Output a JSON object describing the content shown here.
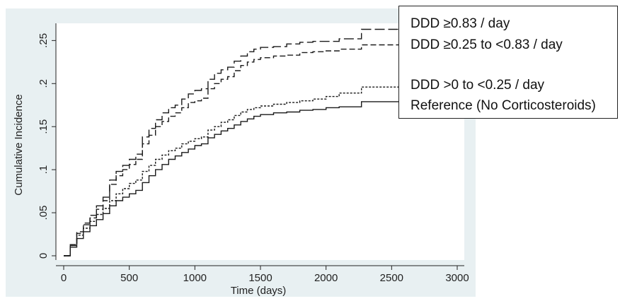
{
  "chart_data": {
    "type": "line",
    "xlabel": "Time (days)",
    "ylabel": "Cumulative Incidence",
    "xlim": [
      0,
      3000
    ],
    "ylim": [
      0,
      0.27
    ],
    "x_ticks": [
      0,
      500,
      1000,
      1500,
      2000,
      2500,
      3000
    ],
    "y_ticks": [
      0,
      0.05,
      0.1,
      0.15,
      0.2,
      0.25
    ],
    "x_tick_labels": [
      "0",
      "500",
      "1000",
      "1500",
      "2000",
      "2500",
      "3000"
    ],
    "y_tick_labels": [
      "0",
      ".05",
      ".1",
      ".15",
      ".2",
      ".25"
    ],
    "legend_position": "top-right",
    "legend": [
      "DDD ≥0.83 / day",
      "DDD ≥0.25 to <0.83 / day",
      "DDD >0 to <0.25 / day",
      "Reference (No Corticosteroids)"
    ],
    "series": [
      {
        "name": "DDD ≥0.83 / day",
        "dash": "long-dash",
        "points": [
          [
            0,
            0
          ],
          [
            50,
            0.013
          ],
          [
            100,
            0.028
          ],
          [
            150,
            0.038
          ],
          [
            200,
            0.047
          ],
          [
            250,
            0.058
          ],
          [
            300,
            0.068
          ],
          [
            350,
            0.088
          ],
          [
            400,
            0.098
          ],
          [
            450,
            0.105
          ],
          [
            500,
            0.112
          ],
          [
            550,
            0.118
          ],
          [
            600,
            0.138
          ],
          [
            650,
            0.148
          ],
          [
            700,
            0.158
          ],
          [
            750,
            0.166
          ],
          [
            800,
            0.172
          ],
          [
            850,
            0.175
          ],
          [
            900,
            0.182
          ],
          [
            950,
            0.188
          ],
          [
            1000,
            0.192
          ],
          [
            1050,
            0.194
          ],
          [
            1100,
            0.205
          ],
          [
            1150,
            0.212
          ],
          [
            1200,
            0.216
          ],
          [
            1250,
            0.219
          ],
          [
            1300,
            0.226
          ],
          [
            1350,
            0.232
          ],
          [
            1400,
            0.237
          ],
          [
            1450,
            0.24
          ],
          [
            1500,
            0.242
          ],
          [
            1600,
            0.243
          ],
          [
            1700,
            0.246
          ],
          [
            1800,
            0.248
          ],
          [
            1900,
            0.249
          ],
          [
            2000,
            0.249
          ],
          [
            2100,
            0.252
          ],
          [
            2250,
            0.252
          ],
          [
            2270,
            0.263
          ],
          [
            2600,
            0.263
          ]
        ]
      },
      {
        "name": "DDD ≥0.25 to <0.83 / day",
        "dash": "medium-dash",
        "points": [
          [
            0,
            0
          ],
          [
            50,
            0.012
          ],
          [
            100,
            0.026
          ],
          [
            150,
            0.036
          ],
          [
            200,
            0.044
          ],
          [
            250,
            0.054
          ],
          [
            300,
            0.064
          ],
          [
            350,
            0.083
          ],
          [
            400,
            0.093
          ],
          [
            450,
            0.1
          ],
          [
            500,
            0.106
          ],
          [
            550,
            0.112
          ],
          [
            600,
            0.13
          ],
          [
            650,
            0.14
          ],
          [
            700,
            0.15
          ],
          [
            750,
            0.156
          ],
          [
            800,
            0.162
          ],
          [
            850,
            0.166
          ],
          [
            900,
            0.172
          ],
          [
            950,
            0.178
          ],
          [
            1000,
            0.18
          ],
          [
            1050,
            0.183
          ],
          [
            1100,
            0.194
          ],
          [
            1150,
            0.2
          ],
          [
            1200,
            0.205
          ],
          [
            1250,
            0.208
          ],
          [
            1300,
            0.215
          ],
          [
            1350,
            0.221
          ],
          [
            1400,
            0.225
          ],
          [
            1450,
            0.228
          ],
          [
            1500,
            0.23
          ],
          [
            1600,
            0.232
          ],
          [
            1700,
            0.233
          ],
          [
            1800,
            0.236
          ],
          [
            1900,
            0.237
          ],
          [
            2000,
            0.238
          ],
          [
            2100,
            0.24
          ],
          [
            2250,
            0.24
          ],
          [
            2270,
            0.245
          ],
          [
            2600,
            0.245
          ]
        ]
      },
      {
        "name": "DDD >0 to <0.25 / day",
        "dash": "short-dash",
        "points": [
          [
            0,
            0
          ],
          [
            50,
            0.012
          ],
          [
            100,
            0.024
          ],
          [
            150,
            0.032
          ],
          [
            200,
            0.04
          ],
          [
            250,
            0.048
          ],
          [
            300,
            0.055
          ],
          [
            350,
            0.064
          ],
          [
            400,
            0.072
          ],
          [
            450,
            0.078
          ],
          [
            500,
            0.084
          ],
          [
            550,
            0.088
          ],
          [
            600,
            0.098
          ],
          [
            650,
            0.105
          ],
          [
            700,
            0.112
          ],
          [
            750,
            0.117
          ],
          [
            800,
            0.122
          ],
          [
            850,
            0.125
          ],
          [
            900,
            0.13
          ],
          [
            950,
            0.133
          ],
          [
            1000,
            0.136
          ],
          [
            1050,
            0.138
          ],
          [
            1100,
            0.146
          ],
          [
            1150,
            0.15
          ],
          [
            1200,
            0.155
          ],
          [
            1250,
            0.158
          ],
          [
            1300,
            0.163
          ],
          [
            1350,
            0.167
          ],
          [
            1400,
            0.17
          ],
          [
            1450,
            0.172
          ],
          [
            1500,
            0.174
          ],
          [
            1600,
            0.176
          ],
          [
            1700,
            0.178
          ],
          [
            1800,
            0.18
          ],
          [
            1900,
            0.182
          ],
          [
            2000,
            0.185
          ],
          [
            2100,
            0.189
          ],
          [
            2250,
            0.189
          ],
          [
            2270,
            0.196
          ],
          [
            2600,
            0.196
          ]
        ]
      },
      {
        "name": "Reference (No Corticosteroids)",
        "dash": "solid",
        "points": [
          [
            0,
            0
          ],
          [
            50,
            0.01
          ],
          [
            100,
            0.02
          ],
          [
            150,
            0.028
          ],
          [
            200,
            0.035
          ],
          [
            250,
            0.042
          ],
          [
            300,
            0.049
          ],
          [
            350,
            0.058
          ],
          [
            400,
            0.064
          ],
          [
            450,
            0.068
          ],
          [
            500,
            0.072
          ],
          [
            550,
            0.076
          ],
          [
            600,
            0.085
          ],
          [
            650,
            0.093
          ],
          [
            700,
            0.1
          ],
          [
            750,
            0.106
          ],
          [
            800,
            0.112
          ],
          [
            850,
            0.116
          ],
          [
            900,
            0.12
          ],
          [
            950,
            0.124
          ],
          [
            1000,
            0.128
          ],
          [
            1050,
            0.13
          ],
          [
            1100,
            0.137
          ],
          [
            1150,
            0.141
          ],
          [
            1200,
            0.145
          ],
          [
            1250,
            0.148
          ],
          [
            1300,
            0.152
          ],
          [
            1350,
            0.156
          ],
          [
            1400,
            0.159
          ],
          [
            1450,
            0.162
          ],
          [
            1500,
            0.164
          ],
          [
            1600,
            0.166
          ],
          [
            1700,
            0.167
          ],
          [
            1800,
            0.169
          ],
          [
            1900,
            0.17
          ],
          [
            2000,
            0.172
          ],
          [
            2100,
            0.173
          ],
          [
            2250,
            0.173
          ],
          [
            2270,
            0.179
          ],
          [
            2600,
            0.179
          ]
        ]
      }
    ]
  },
  "colors": {
    "outer_background": "#e8f0f2",
    "plot_background": "#ffffff",
    "line": "#1a1a1a"
  }
}
